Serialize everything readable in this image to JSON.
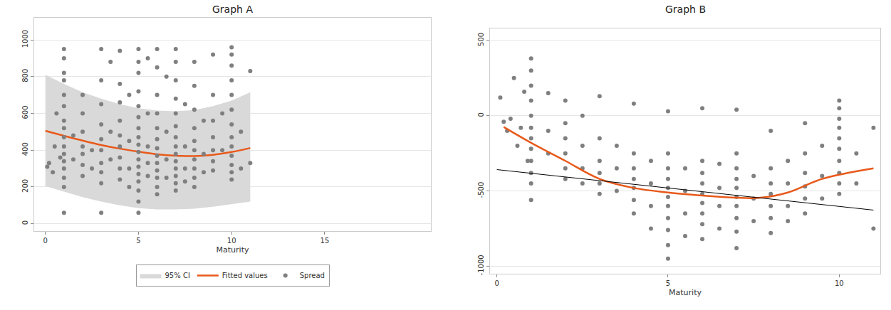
{
  "chart_data": [
    {
      "type": "scatter",
      "title": "Graph A",
      "x_label": "Maturity",
      "xlim": [
        -0.6,
        20.7
      ],
      "xticks": [
        0,
        5,
        10,
        15
      ],
      "ylim": [
        -40,
        1120
      ],
      "yticks": [
        0,
        200,
        400,
        600,
        800,
        1000
      ],
      "grid": true,
      "legend": "bottom",
      "series": [
        {
          "name": "95% CI",
          "type": "area",
          "color": "#d9d9d9",
          "x": [
            0,
            1,
            2,
            3,
            4,
            5,
            6,
            7,
            8,
            9,
            10,
            11
          ],
          "upper": [
            810,
            760,
            715,
            680,
            650,
            628,
            615,
            612,
            618,
            640,
            670,
            715
          ],
          "lower": [
            205,
            175,
            145,
            120,
            100,
            85,
            78,
            78,
            82,
            92,
            105,
            120
          ]
        },
        {
          "name": "Fitted values",
          "type": "line",
          "color": "#e8591a",
          "x": [
            0,
            1,
            2,
            3,
            4,
            5,
            6,
            7,
            8,
            9,
            10,
            11
          ],
          "values": [
            505,
            478,
            452,
            428,
            408,
            392,
            378,
            370,
            368,
            375,
            390,
            412
          ]
        },
        {
          "name": "Spread",
          "type": "scatter",
          "color": "#7f7f7f",
          "marker": "circle",
          "x": [
            0.1,
            0.2,
            0.4,
            0.5,
            0.6,
            0.8,
            1,
            1,
            1,
            1,
            1,
            1,
            1,
            1,
            1,
            1,
            1,
            1,
            1,
            1,
            1,
            1,
            1.5,
            1.5,
            2,
            2,
            2,
            2,
            2,
            2,
            2,
            2.5,
            2.5,
            3,
            3,
            3,
            3,
            3,
            3,
            3,
            3,
            3,
            3,
            3.5,
            3.5,
            3.5,
            4,
            4,
            4,
            4,
            4,
            4,
            4,
            4,
            4,
            4.5,
            4.5,
            4.5,
            4.5,
            5,
            5,
            5,
            5,
            5,
            5,
            5,
            5,
            5,
            5,
            5,
            5,
            5,
            5,
            5,
            5,
            5,
            5.5,
            5.5,
            5.5,
            5.5,
            5.5,
            6,
            6,
            6,
            6,
            6,
            6,
            6,
            6,
            6,
            6,
            6,
            6,
            6,
            6.5,
            6.5,
            6.5,
            6.5,
            7,
            7,
            7,
            7,
            7,
            7,
            7,
            7,
            7,
            7,
            7,
            7,
            7,
            7,
            7.5,
            7.5,
            7.5,
            7.5,
            8,
            8,
            8,
            8,
            8,
            8,
            8,
            8,
            8,
            8,
            8.5,
            8.5,
            8.5,
            9,
            9,
            9,
            9,
            9,
            9,
            9,
            9.5,
            9.5,
            10,
            10,
            10,
            10,
            10,
            10,
            10,
            10,
            10,
            10,
            10,
            10,
            10,
            10.5,
            10.5,
            11,
            11
          ],
          "values": [
            310,
            330,
            280,
            420,
            600,
            360,
            950,
            900,
            820,
            780,
            700,
            640,
            560,
            520,
            470,
            420,
            380,
            340,
            300,
            250,
            200,
            60,
            480,
            350,
            700,
            600,
            500,
            420,
            380,
            320,
            260,
            400,
            300,
            950,
            780,
            650,
            540,
            460,
            400,
            330,
            280,
            220,
            60,
            880,
            500,
            350,
            940,
            760,
            660,
            560,
            480,
            420,
            360,
            300,
            240,
            700,
            450,
            300,
            200,
            950,
            880,
            820,
            720,
            640,
            580,
            520,
            470,
            430,
            390,
            350,
            310,
            270,
            230,
            180,
            120,
            60,
            900,
            600,
            420,
            330,
            260,
            950,
            850,
            700,
            600,
            520,
            460,
            410,
            370,
            330,
            290,
            250,
            200,
            160,
            800,
            500,
            350,
            250,
            950,
            880,
            780,
            680,
            600,
            530,
            470,
            420,
            380,
            340,
            300,
            260,
            220,
            180,
            650,
            420,
            300,
            230,
            880,
            750,
            620,
            520,
            450,
            400,
            350,
            300,
            250,
            200,
            560,
            380,
            280,
            920,
            700,
            560,
            470,
            400,
            340,
            290,
            600,
            400,
            960,
            920,
            860,
            780,
            700,
            620,
            540,
            470,
            420,
            370,
            320,
            280,
            240,
            500,
            300,
            830,
            330
          ]
        }
      ]
    },
    {
      "type": "scatter",
      "title": "Graph B",
      "x_label": "Maturity",
      "xlim": [
        -0.2,
        11.2
      ],
      "xticks": [
        0,
        5,
        10
      ],
      "ylim": [
        -1050,
        580
      ],
      "yticks": [
        -1000,
        -500,
        0,
        500
      ],
      "grid": true,
      "series": [
        {
          "type": "scatter",
          "color": "#7f7f7f",
          "marker": "circle",
          "x": [
            0.1,
            0.2,
            0.3,
            0.4,
            0.5,
            0.6,
            0.7,
            0.8,
            0.9,
            1,
            1,
            1,
            1,
            1,
            1,
            1,
            1,
            1,
            1,
            1,
            1,
            1.5,
            1.5,
            1.5,
            2,
            2,
            2,
            2,
            2,
            2,
            2.5,
            2.5,
            2.5,
            2.5,
            3,
            3,
            3,
            3,
            3,
            3,
            3.5,
            3.5,
            3.5,
            4,
            4,
            4,
            4,
            4,
            4,
            4,
            4.5,
            4.5,
            4.5,
            4.5,
            5,
            5,
            5,
            5,
            5,
            5,
            5,
            5,
            5,
            5,
            5,
            5.5,
            5.5,
            5.5,
            5.5,
            6,
            6,
            6,
            6,
            6,
            6,
            6,
            6,
            6,
            6.5,
            6.5,
            6.5,
            6.5,
            7,
            7,
            7,
            7,
            7,
            7,
            7,
            7,
            7,
            7,
            7.5,
            7.5,
            7.5,
            8,
            8,
            8,
            8,
            8,
            8,
            8,
            8.5,
            8.5,
            8.5,
            8.5,
            9,
            9,
            9,
            9,
            9,
            9,
            9.5,
            9.5,
            9.5,
            10,
            10,
            10,
            10,
            10,
            10,
            10,
            10,
            10,
            10,
            10.5,
            10.5,
            11,
            11
          ],
          "values": [
            120,
            -40,
            -100,
            -20,
            250,
            -200,
            -80,
            160,
            -300,
            380,
            300,
            200,
            100,
            0,
            -80,
            -150,
            -220,
            -300,
            -380,
            -450,
            -560,
            150,
            -100,
            -250,
            100,
            -50,
            -150,
            -250,
            -350,
            -420,
            0,
            -200,
            -350,
            -450,
            130,
            -150,
            -300,
            -380,
            -450,
            -520,
            -200,
            -350,
            -500,
            80,
            -250,
            -350,
            -420,
            -480,
            -560,
            -650,
            -300,
            -450,
            -600,
            -750,
            30,
            -250,
            -350,
            -420,
            -480,
            -540,
            -600,
            -680,
            -760,
            -860,
            -950,
            -350,
            -500,
            -650,
            -800,
            50,
            -300,
            -380,
            -450,
            -520,
            -580,
            -650,
            -720,
            -820,
            -320,
            -480,
            -600,
            -750,
            40,
            -250,
            -350,
            -420,
            -480,
            -540,
            -600,
            -680,
            -770,
            -880,
            -400,
            -550,
            -700,
            -100,
            -350,
            -450,
            -520,
            -600,
            -680,
            -780,
            -300,
            -450,
            -600,
            -700,
            -50,
            -250,
            -380,
            -470,
            -550,
            -650,
            -200,
            -400,
            -550,
            100,
            50,
            -20,
            -80,
            -150,
            -220,
            -300,
            -380,
            -450,
            -520,
            -250,
            -450,
            -80,
            -750
          ]
        },
        {
          "type": "line",
          "color": "#e8591a",
          "x": [
            0.2,
            1,
            2,
            3,
            4,
            5,
            6,
            7,
            7.7,
            8.5,
            9.5,
            11
          ],
          "values": [
            -75,
            -180,
            -300,
            -420,
            -480,
            -510,
            -530,
            -545,
            -545,
            -510,
            -420,
            -350
          ]
        },
        {
          "type": "line",
          "color": "#000000",
          "x": [
            0,
            11
          ],
          "values": [
            -358,
            -627
          ]
        }
      ]
    }
  ]
}
